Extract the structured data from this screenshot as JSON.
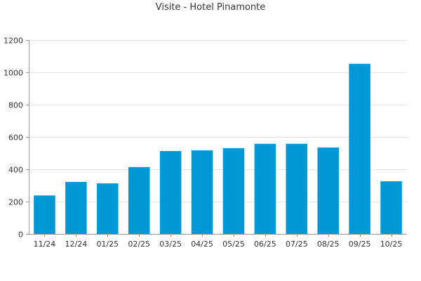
{
  "chart_data": {
    "type": "bar",
    "title": "Visite - Hotel Pinamonte",
    "categories": [
      "11/24",
      "12/24",
      "01/25",
      "02/25",
      "03/25",
      "04/25",
      "05/25",
      "06/25",
      "07/25",
      "08/25",
      "09/25",
      "10/25"
    ],
    "values": [
      238,
      322,
      313,
      414,
      513,
      517,
      531,
      558,
      558,
      535,
      1053,
      326
    ],
    "ylim": [
      0,
      1200
    ],
    "yticks": [
      0,
      200,
      400,
      600,
      800,
      1000,
      1200
    ],
    "grid": true,
    "legend": "none",
    "bar_color": "#0099d6",
    "grid_color": "#e6e6e6",
    "axis_color": "#999999"
  }
}
